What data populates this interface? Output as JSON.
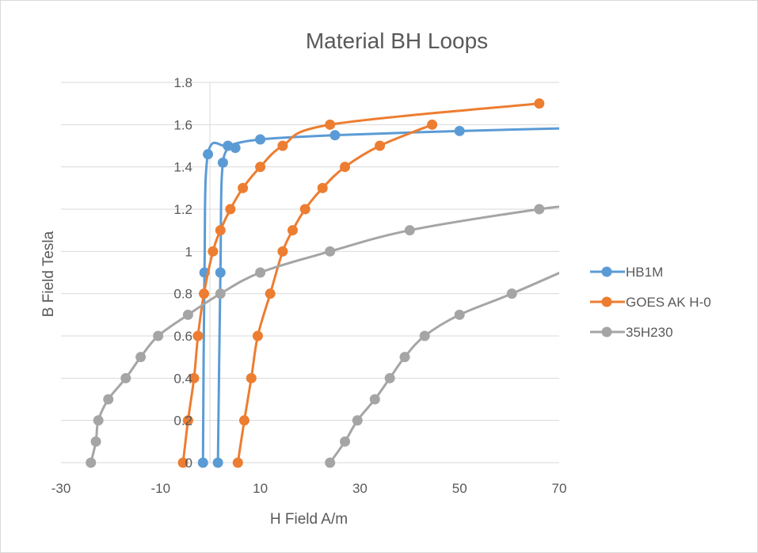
{
  "chart_data": {
    "type": "scatter",
    "title": "Material BH Loops",
    "xlabel": "H Field  A/m",
    "ylabel": "B Field  Tesla",
    "xlim": [
      -30,
      70
    ],
    "ylim": [
      0,
      1.8
    ],
    "xticks": [
      -30,
      -10,
      10,
      30,
      50,
      70
    ],
    "yticks": [
      0,
      0.2,
      0.4,
      0.6,
      0.8,
      1,
      1.2,
      1.4,
      1.6,
      1.8
    ],
    "ytick_labels": [
      "0",
      "0.2",
      "0.4",
      "0.6",
      "0.8",
      "1",
      "1.2",
      "1.4",
      "1.6",
      "1.8"
    ],
    "xtick_labels": [
      "-30",
      "-10",
      "10",
      "30",
      "50",
      "70"
    ],
    "grid": "horizontal",
    "legend_position": "right",
    "series": [
      {
        "name": "HB1M",
        "color": "#5b9bd5",
        "points": [
          [
            -1.5,
            0
          ],
          [
            -1.2,
            0.9
          ],
          [
            -0.5,
            1.46
          ],
          [
            3.5,
            1.5
          ],
          [
            10,
            1.53
          ],
          [
            25,
            1.55
          ],
          [
            50,
            1.57
          ],
          [
            75,
            1.585
          ]
        ],
        "return_points": [
          [
            5,
            1.49
          ],
          [
            2.5,
            1.42
          ],
          [
            2,
            0.9
          ],
          [
            1.5,
            0
          ]
        ]
      },
      {
        "name": "GOES AK H-0",
        "color": "#ed7d31",
        "points": [
          [
            -5.5,
            0
          ],
          [
            -4.5,
            0.2
          ],
          [
            -3.3,
            0.4
          ],
          [
            -2.5,
            0.6
          ],
          [
            -1.3,
            0.8
          ],
          [
            0.5,
            1.0
          ],
          [
            2.0,
            1.1
          ],
          [
            4,
            1.2
          ],
          [
            6.5,
            1.3
          ],
          [
            10,
            1.4
          ],
          [
            14.5,
            1.5
          ],
          [
            24,
            1.6
          ],
          [
            66,
            1.7
          ]
        ],
        "return_points": [
          [
            44.5,
            1.6
          ],
          [
            34,
            1.5
          ],
          [
            27,
            1.4
          ],
          [
            22.5,
            1.3
          ],
          [
            19,
            1.2
          ],
          [
            16.5,
            1.1
          ],
          [
            14.5,
            1.0
          ],
          [
            12,
            0.8
          ],
          [
            9.5,
            0.6
          ],
          [
            8.2,
            0.4
          ],
          [
            6.8,
            0.2
          ],
          [
            5.5,
            0
          ]
        ]
      },
      {
        "name": "35H230",
        "color": "#a5a5a5",
        "points": [
          [
            -24,
            0
          ],
          [
            -23,
            0.1
          ],
          [
            -22.5,
            0.2
          ],
          [
            -20.5,
            0.3
          ],
          [
            -17,
            0.4
          ],
          [
            -14,
            0.5
          ],
          [
            -10.5,
            0.6
          ],
          [
            -4.5,
            0.7
          ],
          [
            2,
            0.8
          ],
          [
            10,
            0.9
          ],
          [
            24,
            1.0
          ],
          [
            40,
            1.1
          ],
          [
            66,
            1.2
          ],
          [
            75,
            1.22
          ]
        ],
        "return_points": [
          [
            75,
            0.95
          ],
          [
            60.5,
            0.8
          ],
          [
            50,
            0.7
          ],
          [
            43,
            0.6
          ],
          [
            39,
            0.5
          ],
          [
            36,
            0.4
          ],
          [
            33,
            0.3
          ],
          [
            29.5,
            0.2
          ],
          [
            27,
            0.1
          ],
          [
            24,
            0
          ]
        ]
      }
    ]
  }
}
